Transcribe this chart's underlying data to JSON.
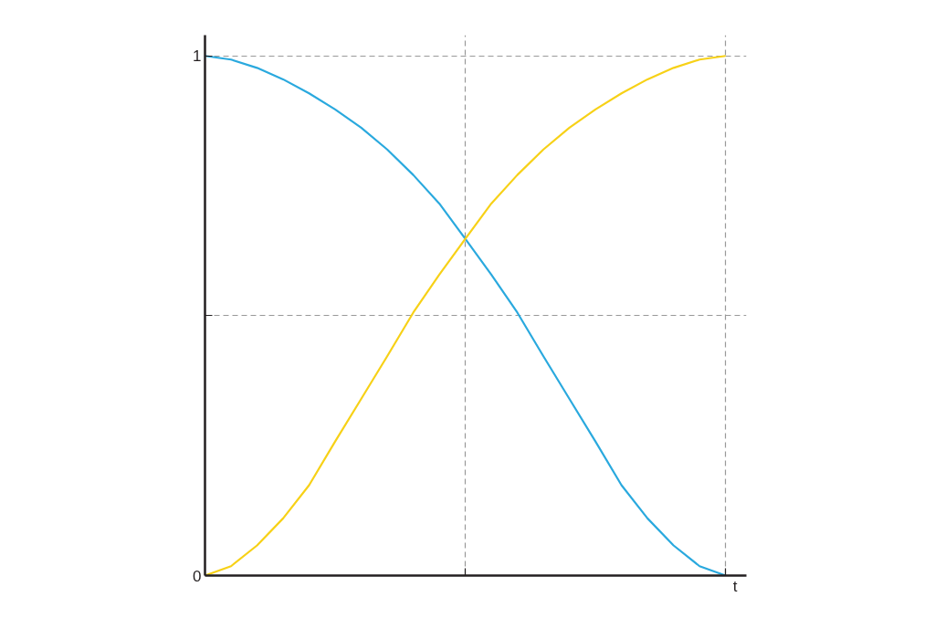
{
  "chart_data": {
    "type": "line",
    "xlabel": "t",
    "categories": [
      null,
      null,
      null,
      null,
      null,
      null,
      null,
      null,
      null,
      null,
      null,
      null,
      null,
      null,
      null,
      null,
      null,
      null,
      null,
      null,
      null
    ],
    "series": [
      {
        "color": "#2aa9de",
        "values": [
          1,
          0.993,
          0.977,
          0.955,
          0.928,
          0.897,
          0.862,
          0.82,
          0.771,
          0.716,
          0.648,
          0.579,
          0.506,
          0.422,
          0.34,
          0.258,
          0.174,
          0.11,
          0.058,
          0.018,
          0
        ]
      },
      {
        "color": "#f7d117",
        "values": [
          0,
          0.018,
          0.058,
          0.11,
          0.174,
          0.258,
          0.34,
          0.422,
          0.506,
          0.579,
          0.648,
          0.716,
          0.771,
          0.82,
          0.862,
          0.897,
          0.928,
          0.955,
          0.977,
          0.993,
          1
        ]
      }
    ],
    "ylim": [
      0,
      1.04
    ],
    "yticks": [
      0,
      {
        "value": 0.5,
        "label": null
      },
      1
    ],
    "grid": true,
    "marker": "none",
    "line_style": "solid"
  }
}
